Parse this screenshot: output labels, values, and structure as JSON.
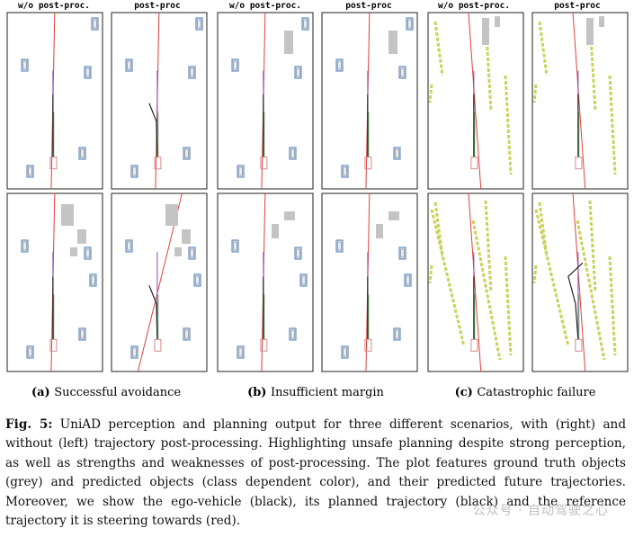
{
  "figure": {
    "column_titles": [
      "w/o post-proc.",
      "post-proc",
      "w/o post-proc.",
      "post-proc",
      "w/o post-proc.",
      "post-proc"
    ],
    "subfigures": [
      {
        "tag": "(a)",
        "label": "Successful avoidance"
      },
      {
        "tag": "(b)",
        "label": "Insufficient margin"
      },
      {
        "tag": "(c)",
        "label": "Catastrophic failure"
      }
    ]
  },
  "caption": {
    "figure_label": "Fig. 5:",
    "text": "UniAD perception and planning output for three different scenarios, with (right) and without (left) trajectory post-processing. Highlighting unsafe planning despite strong perception, as well as strengths and weaknesses of post-processing. The plot features ground truth objects (grey) and predicted objects (class dependent color), and their predicted future trajectories. Moreover, we show the ego-vehicle (black), its planned trajectory (black) and the reference trajectory it is steering towards (red)."
  },
  "watermark": "公众号 · 自动驾驶之心",
  "colors": {
    "reference_trajectory": "#e0403a",
    "planned_trajectory": "#222222",
    "predicted_object": "#4a78b8",
    "ground_truth_object": "#9a9a9a",
    "lane_marking": "#c9d25a",
    "ego_box": "#d98a8a"
  }
}
